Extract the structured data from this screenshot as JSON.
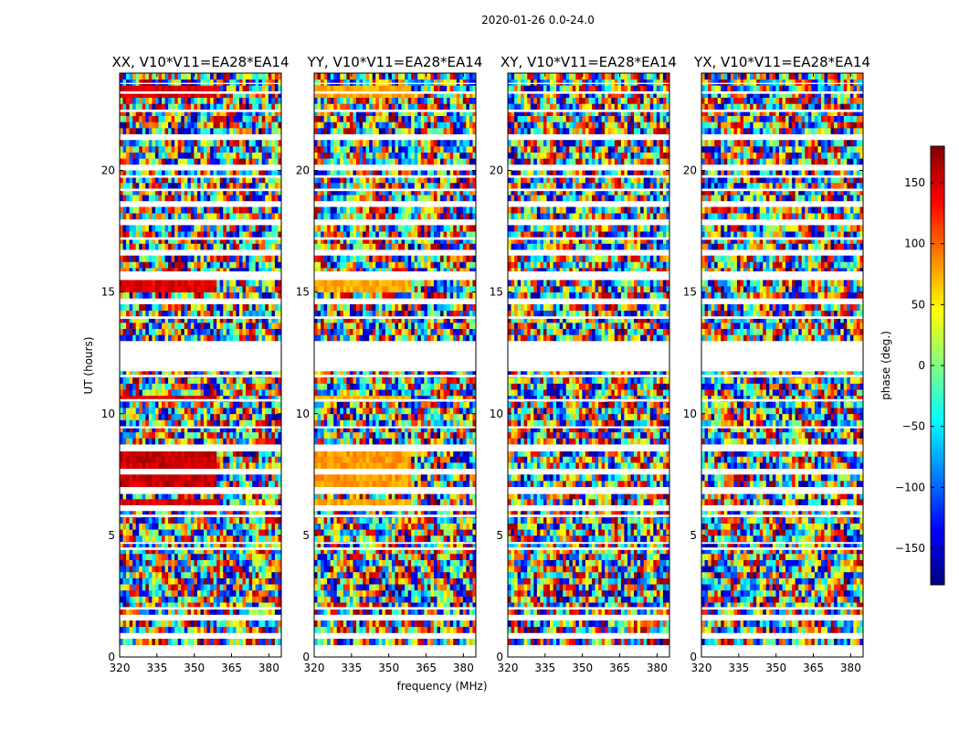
{
  "chart_data": {
    "type": "heatmap",
    "suptitle": "2020-01-26 0.0-24.0",
    "panels": [
      {
        "title": "XX, V10*V11=EA28*EA14"
      },
      {
        "title": "YY, V10*V11=EA28*EA14"
      },
      {
        "title": "XY, V10*V11=EA28*EA14"
      },
      {
        "title": "YX, V10*V11=EA28*EA14"
      }
    ],
    "xlabel": "frequency (MHz)",
    "ylabel": "UT (hours)",
    "xlim": [
      320,
      385
    ],
    "ylim": [
      0,
      24
    ],
    "xticks": [
      320,
      335,
      350,
      365,
      380
    ],
    "yticks": [
      0,
      5,
      10,
      15,
      20
    ],
    "colorbar": {
      "label": "phase (deg.)",
      "range": [
        -180,
        180
      ],
      "ticks": [
        150,
        100,
        50,
        0,
        -50,
        -100,
        -150
      ],
      "tick_labels": [
        "150",
        "100",
        "50",
        "0",
        "−50",
        "−100",
        "−150"
      ],
      "colormap": "jet"
    },
    "flagged_hour_ranges": [
      [
        0.08,
        0.15
      ],
      [
        0.32,
        0.38
      ],
      [
        0.85,
        0.9
      ],
      [
        1.55,
        1.65
      ],
      [
        1.95,
        2.05
      ],
      [
        4.4,
        4.5
      ],
      [
        4.65,
        4.72
      ],
      [
        5.75,
        5.85
      ],
      [
        6.05,
        6.15
      ],
      [
        6.7,
        6.9
      ],
      [
        7.6,
        7.7
      ],
      [
        8.45,
        8.7
      ],
      [
        9.4,
        9.48
      ],
      [
        10.5,
        10.6
      ],
      [
        11.5,
        11.6
      ],
      [
        11.75,
        12.95
      ],
      [
        13.9,
        14.0
      ],
      [
        14.55,
        14.65
      ],
      [
        15.5,
        15.85
      ],
      [
        16.6,
        16.7
      ],
      [
        17.15,
        17.25
      ],
      [
        17.85,
        17.95
      ],
      [
        18.6,
        18.7
      ],
      [
        19.15,
        19.25
      ],
      [
        19.7,
        19.8
      ],
      [
        20.1,
        20.2
      ],
      [
        21.3,
        21.4
      ],
      [
        22.4,
        22.5
      ],
      [
        23.15,
        23.25
      ],
      [
        23.55,
        23.6
      ]
    ],
    "coherent_phase_regions": [
      {
        "panel": "XX",
        "hours": [
          15.0,
          15.4
        ],
        "freq_MHz": [
          320,
          359
        ],
        "phase_deg": 145
      },
      {
        "panel": "XX",
        "hours": [
          10.6,
          10.85
        ],
        "freq_MHz": [
          320,
          359
        ],
        "phase_deg": 150
      },
      {
        "panel": "XX",
        "hours": [
          6.9,
          8.4
        ],
        "freq_MHz": [
          320,
          359
        ],
        "phase_deg": 155
      },
      {
        "panel": "XX",
        "hours": [
          6.1,
          6.6
        ],
        "freq_MHz": [
          320,
          359
        ],
        "phase_deg": 150
      },
      {
        "panel": "XX",
        "hours": [
          23.1,
          23.5
        ],
        "freq_MHz": [
          320,
          359
        ],
        "phase_deg": 150
      },
      {
        "panel": "YY",
        "hours": [
          15.0,
          15.4
        ],
        "freq_MHz": [
          320,
          359
        ],
        "phase_deg": 75
      },
      {
        "panel": "YY",
        "hours": [
          10.6,
          10.85
        ],
        "freq_MHz": [
          320,
          359
        ],
        "phase_deg": 70
      },
      {
        "panel": "YY",
        "hours": [
          6.9,
          8.4
        ],
        "freq_MHz": [
          320,
          359
        ],
        "phase_deg": 80
      },
      {
        "panel": "YY",
        "hours": [
          6.1,
          6.6
        ],
        "freq_MHz": [
          320,
          359
        ],
        "phase_deg": 75
      },
      {
        "panel": "YY",
        "hours": [
          23.1,
          23.5
        ],
        "freq_MHz": [
          320,
          359
        ],
        "phase_deg": 75
      }
    ]
  }
}
